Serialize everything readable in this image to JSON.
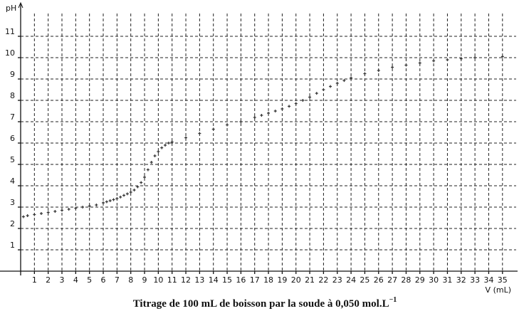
{
  "chart_data": {
    "type": "scatter",
    "caption": "Titrage de 100 mL de boisson par la soude à 0,050 mol.L",
    "caption_sup": "−1",
    "x_label": "V (mL)",
    "y_label": "pH",
    "color": "#333333",
    "grid": true,
    "xlim": [
      0,
      36.2
    ],
    "ylim": [
      0,
      12.6
    ],
    "xticks": [
      1,
      2,
      3,
      4,
      5,
      6,
      7,
      8,
      9,
      10,
      11,
      12,
      13,
      14,
      15,
      16,
      17,
      18,
      19,
      20,
      21,
      22,
      23,
      24,
      25,
      26,
      27,
      28,
      29,
      30,
      31,
      32,
      33,
      34,
      35
    ],
    "yticks": [
      1,
      2,
      3,
      4,
      5,
      6,
      7,
      8,
      9,
      10,
      11
    ],
    "x": [
      0.2,
      0.5,
      1,
      1.5,
      2,
      2.5,
      3,
      3.5,
      4,
      4.5,
      5,
      5.5,
      6,
      6.25,
      6.5,
      6.75,
      7,
      7.25,
      7.5,
      7.75,
      8,
      8.25,
      8.5,
      8.75,
      9,
      9.25,
      9.5,
      9.75,
      10,
      10.25,
      10.5,
      10.75,
      11,
      12,
      13,
      14,
      15,
      16,
      17,
      17.5,
      18,
      18.5,
      19,
      19.5,
      20,
      20.5,
      21,
      21.5,
      22,
      22.5,
      23,
      23.5,
      24,
      25,
      26,
      27,
      28,
      29,
      30,
      31,
      32,
      33,
      35
    ],
    "y": [
      2.55,
      2.6,
      2.65,
      2.7,
      2.75,
      2.8,
      2.85,
      2.9,
      2.95,
      3.0,
      3.05,
      3.1,
      3.2,
      3.25,
      3.3,
      3.35,
      3.4,
      3.47,
      3.55,
      3.62,
      3.7,
      3.8,
      3.95,
      4.15,
      4.4,
      4.75,
      5.1,
      5.4,
      5.6,
      5.78,
      5.9,
      6.0,
      6.05,
      6.25,
      6.45,
      6.65,
      6.85,
      7.0,
      7.2,
      7.3,
      7.4,
      7.5,
      7.6,
      7.72,
      7.85,
      8.0,
      8.15,
      8.33,
      8.5,
      8.65,
      8.8,
      8.93,
      9.05,
      9.25,
      9.4,
      9.55,
      9.65,
      9.75,
      9.85,
      9.9,
      9.95,
      10.0,
      10.05
    ]
  }
}
